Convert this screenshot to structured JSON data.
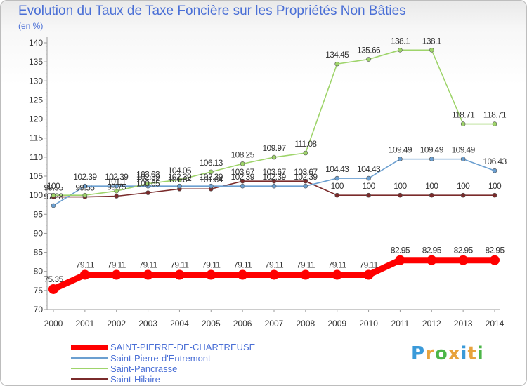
{
  "title": "Evolution du Taux de Taxe Foncière sur les Propriétés Non Bâties",
  "subtitle": "(en %)",
  "logo": {
    "text": "Proxiti",
    "colors": [
      "#3a9ad9",
      "#e8a33d",
      "#4cb648",
      "#e8a33d",
      "#3a9ad9",
      "#e8a33d",
      "#4cb648"
    ]
  },
  "chart_data": {
    "type": "line",
    "title": "Evolution du Taux de Taxe Foncière sur les Propriétés Non Bâties",
    "ylabel": "(en %)",
    "ylim": [
      70,
      140
    ],
    "yticks": [
      70,
      75,
      80,
      85,
      90,
      95,
      100,
      105,
      110,
      115,
      120,
      125,
      130,
      135,
      140
    ],
    "x": [
      "2000",
      "2001",
      "2002",
      "2003",
      "2004",
      "2005",
      "2006",
      "2007",
      "2008",
      "2009",
      "2010",
      "2011",
      "2012",
      "2013",
      "2014"
    ],
    "grid": false,
    "legend": "bottom-left",
    "series": [
      {
        "name": "Saint-Hilaire",
        "color": "#7a2b2b",
        "labels": false,
        "values": [
          99.55,
          99.55,
          99.75,
          100.65,
          101.64,
          101.64,
          103.67,
          103.67,
          103.67,
          100,
          100,
          100,
          100,
          100,
          100
        ],
        "labelText": [
          "99.55",
          "99.55",
          "99.75",
          "100.65",
          "101.64",
          "101.64",
          "103.67",
          "103.67",
          "103.67",
          "100",
          "100",
          "100",
          "100",
          "100",
          "100"
        ]
      },
      {
        "name": "Saint-Pierre-d'Entremont",
        "color": "#6b9fd0",
        "labels": false,
        "values": [
          97.28,
          102.39,
          102.39,
          102.39,
          102.39,
          102.39,
          102.39,
          102.39,
          102.39,
          104.43,
          104.43,
          109.49,
          109.49,
          109.49,
          106.43
        ],
        "labelText": [
          "97.28",
          "102.39",
          "102.39",
          "102.39",
          "102.39",
          "102.39",
          "102.39",
          "102.39",
          "102.39",
          "104.43",
          "104.43",
          "109.49",
          "109.49",
          "109.49",
          "106.43"
        ]
      },
      {
        "name": "Saint-Pancrasse",
        "color": "#9ed46a",
        "labels": false,
        "values": [
          100,
          100,
          101.1,
          103.03,
          104.05,
          106.13,
          108.25,
          109.97,
          111.08,
          134.45,
          135.66,
          138.1,
          138.1,
          118.71,
          118.71
        ],
        "labelText": [
          "100",
          "100",
          "101.1",
          "103.03",
          "104.05",
          "106.13",
          "108.25",
          "109.97",
          "111.08",
          "134.45",
          "135.66",
          "138.1",
          "138.1",
          "118.71",
          "118.71"
        ]
      },
      {
        "name": "SAINT-PIERRE-DE-CHARTREUSE",
        "color": "#ff0000",
        "labels": true,
        "thick": true,
        "values": [
          75.35,
          79.11,
          79.11,
          79.11,
          79.11,
          79.11,
          79.11,
          79.11,
          79.11,
          79.11,
          79.11,
          82.95,
          82.95,
          82.95,
          82.95
        ],
        "labelText": [
          "75.35",
          "79.11",
          "79.11",
          "79.11",
          "79.11",
          "79.11",
          "79.11",
          "79.11",
          "79.11",
          "79.11",
          "79.11",
          "82.95",
          "82.95",
          "82.95",
          "82.95"
        ]
      }
    ],
    "point_labels": [
      {
        "series": "Saint-Hilaire",
        "index": 0,
        "text": "99.55"
      },
      {
        "series": "Saint-Hilaire",
        "index": 1,
        "text": "99.55"
      },
      {
        "series": "Saint-Hilaire",
        "index": 2,
        "text": "99.75"
      },
      {
        "series": "Saint-Hilaire",
        "index": 3,
        "text": "100.65"
      },
      {
        "series": "Saint-Hilaire",
        "index": 4,
        "text": "101.64"
      },
      {
        "series": "Saint-Hilaire",
        "index": 5,
        "text": "101.64"
      },
      {
        "series": "Saint-Hilaire",
        "index": 6,
        "text": "103.67"
      },
      {
        "series": "Saint-Hilaire",
        "index": 7,
        "text": "103.67"
      },
      {
        "series": "Saint-Hilaire",
        "index": 8,
        "text": "103.67"
      },
      {
        "series": "Saint-Hilaire",
        "index": 9,
        "text": "100"
      },
      {
        "series": "Saint-Hilaire",
        "index": 10,
        "text": "100"
      },
      {
        "series": "Saint-Hilaire",
        "index": 11,
        "text": "100"
      },
      {
        "series": "Saint-Hilaire",
        "index": 12,
        "text": "100"
      },
      {
        "series": "Saint-Hilaire",
        "index": 13,
        "text": "100"
      },
      {
        "series": "Saint-Hilaire",
        "index": 14,
        "text": "100"
      },
      {
        "series": "Saint-Pierre-d'Entremont",
        "index": 0,
        "text": "97.28"
      },
      {
        "series": "Saint-Pierre-d'Entremont",
        "index": 1,
        "text": "102.39"
      },
      {
        "series": "Saint-Pierre-d'Entremont",
        "index": 2,
        "text": "102.39"
      },
      {
        "series": "Saint-Pierre-d'Entremont",
        "index": 3,
        "text": "102.39"
      },
      {
        "series": "Saint-Pierre-d'Entremont",
        "index": 4,
        "text": "102.39"
      },
      {
        "series": "Saint-Pierre-d'Entremont",
        "index": 5,
        "text": "102.39"
      },
      {
        "series": "Saint-Pierre-d'Entremont",
        "index": 6,
        "text": "102.39"
      },
      {
        "series": "Saint-Pierre-d'Entremont",
        "index": 7,
        "text": "102.39"
      },
      {
        "series": "Saint-Pierre-d'Entremont",
        "index": 8,
        "text": "102.39"
      },
      {
        "series": "Saint-Pierre-d'Entremont",
        "index": 9,
        "text": "104.43"
      },
      {
        "series": "Saint-Pierre-d'Entremont",
        "index": 10,
        "text": "104.43"
      },
      {
        "series": "Saint-Pierre-d'Entremont",
        "index": 11,
        "text": "109.49"
      },
      {
        "series": "Saint-Pierre-d'Entremont",
        "index": 12,
        "text": "109.49"
      },
      {
        "series": "Saint-Pierre-d'Entremont",
        "index": 13,
        "text": "109.49"
      },
      {
        "series": "Saint-Pierre-d'Entremont",
        "index": 14,
        "text": "106.43"
      },
      {
        "series": "Saint-Pancrasse",
        "index": 0,
        "text": "100"
      },
      {
        "series": "Saint-Pancrasse",
        "index": 2,
        "text": "101.1"
      },
      {
        "series": "Saint-Pancrasse",
        "index": 3,
        "text": "103.03"
      },
      {
        "series": "Saint-Pancrasse",
        "index": 4,
        "text": "104.05"
      },
      {
        "series": "Saint-Pancrasse",
        "index": 5,
        "text": "106.13"
      },
      {
        "series": "Saint-Pancrasse",
        "index": 6,
        "text": "108.25"
      },
      {
        "series": "Saint-Pancrasse",
        "index": 7,
        "text": "109.97"
      },
      {
        "series": "Saint-Pancrasse",
        "index": 8,
        "text": "111.08"
      },
      {
        "series": "Saint-Pancrasse",
        "index": 9,
        "text": "134.45"
      },
      {
        "series": "Saint-Pancrasse",
        "index": 10,
        "text": "135.66"
      },
      {
        "series": "Saint-Pancrasse",
        "index": 11,
        "text": "138.1"
      },
      {
        "series": "Saint-Pancrasse",
        "index": 12,
        "text": "138.1"
      },
      {
        "series": "Saint-Pancrasse",
        "index": 13,
        "text": "118.71"
      },
      {
        "series": "Saint-Pancrasse",
        "index": 14,
        "text": "118.71"
      }
    ]
  }
}
